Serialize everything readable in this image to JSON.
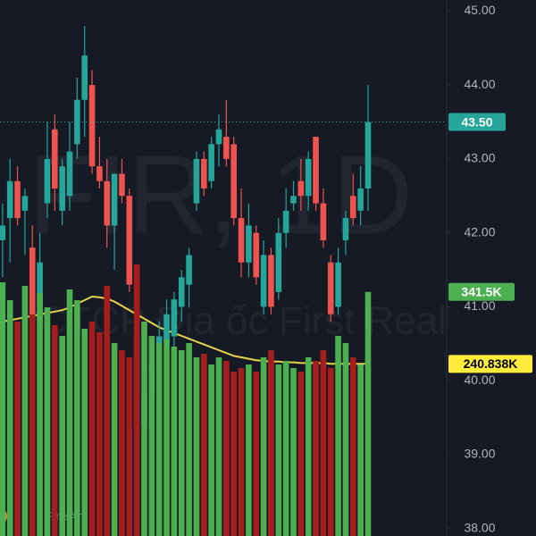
{
  "chart_data": {
    "type": "candlestick",
    "watermark": "FIR, 1D",
    "watermark_subtitle": "CTCP Địa ốc First Real",
    "brand": "FireAnt",
    "up_color": "#26a69a",
    "down_color": "#ef5350",
    "volume_up_color": "#4caf50",
    "volume_down_color": "#a51d1d",
    "ma_color": "#e6d34a",
    "ylim": [
      37.9,
      45.15
    ],
    "yticks": [
      {
        "value": 38,
        "label": "38.00"
      },
      {
        "value": 39,
        "label": "39.00"
      },
      {
        "value": 40,
        "label": "40.00"
      },
      {
        "value": 41,
        "label": "41.00"
      },
      {
        "value": 42,
        "label": "42.00"
      },
      {
        "value": 43,
        "label": "43.00"
      },
      {
        "value": 44,
        "label": "44.00"
      },
      {
        "value": 45,
        "label": "45.00"
      }
    ],
    "open": [
      41.9,
      42.2,
      42.7,
      42.3,
      41.8,
      40.8,
      42.4,
      43.4,
      42.3,
      42.5,
      43.2,
      43.8,
      44.0,
      42.9,
      42.7,
      42.1,
      42.8,
      42.5,
      40.6,
      39.4,
      39.8,
      40.2,
      40.5,
      40.6,
      41.0,
      41.3,
      42.4,
      43.0,
      42.7,
      43.2,
      43.3,
      43.2,
      42.2,
      41.6,
      42.0,
      41.0,
      41.7,
      41.2,
      42.0,
      42.4,
      42.7,
      42.5,
      43.3,
      42.4,
      41.6,
      41.0,
      41.9,
      42.5,
      42.3,
      42.6
    ],
    "high": [
      42.4,
      43.0,
      42.9,
      42.6,
      42.1,
      42.0,
      43.5,
      43.6,
      43.0,
      43.5,
      44.1,
      44.8,
      44.2,
      43.3,
      43.0,
      42.8,
      43.0,
      42.6,
      40.7,
      40.1,
      40.4,
      40.8,
      41.1,
      41.2,
      41.5,
      41.8,
      43.1,
      43.1,
      43.3,
      43.6,
      43.8,
      43.3,
      42.6,
      42.4,
      42.1,
      41.9,
      41.8,
      42.2,
      42.6,
      42.7,
      43.0,
      43.1,
      43.3,
      42.6,
      41.7,
      41.8,
      42.3,
      42.8,
      42.9,
      44.0
    ],
    "low": [
      41.4,
      41.6,
      42.1,
      41.7,
      40.4,
      40.6,
      42.2,
      42.3,
      42.1,
      42.3,
      43.0,
      43.3,
      42.8,
      42.6,
      41.8,
      41.5,
      42.4,
      41.2,
      39.2,
      39.1,
      39.6,
      40.0,
      40.3,
      40.4,
      40.8,
      41.0,
      42.3,
      42.5,
      42.6,
      42.9,
      42.9,
      42.1,
      41.4,
      41.4,
      41.3,
      40.9,
      40.9,
      41.1,
      41.8,
      42.3,
      42.3,
      42.3,
      42.3,
      41.8,
      40.8,
      40.9,
      41.7,
      42.1,
      42.1,
      42.3
    ],
    "close": [
      42.1,
      42.7,
      42.2,
      42.5,
      40.8,
      41.6,
      43.0,
      42.6,
      42.9,
      43.1,
      43.8,
      44.4,
      42.9,
      42.7,
      42.1,
      42.8,
      42.5,
      41.3,
      39.3,
      39.8,
      40.2,
      40.6,
      40.9,
      41.1,
      41.4,
      41.7,
      43.0,
      42.6,
      43.2,
      43.4,
      43.0,
      42.2,
      41.6,
      42.1,
      41.4,
      41.7,
      41.0,
      42.0,
      42.3,
      42.5,
      42.5,
      43.0,
      42.4,
      41.9,
      40.9,
      41.6,
      42.2,
      42.2,
      42.6,
      43.5
    ],
    "volume": [
      355000,
      330000,
      300000,
      350000,
      310000,
      340000,
      320000,
      295000,
      280000,
      345000,
      330000,
      290000,
      300000,
      285000,
      350000,
      270000,
      260000,
      250000,
      380000,
      300000,
      280000,
      270000,
      275000,
      265000,
      260000,
      270000,
      250000,
      255000,
      240000,
      250000,
      245000,
      230000,
      235000,
      240000,
      230000,
      250000,
      260000,
      240000,
      245000,
      235000,
      230000,
      250000,
      245000,
      260000,
      235000,
      280000,
      270000,
      250000,
      240000,
      341500
    ],
    "volume_ma": [
      300000,
      302000,
      304000,
      306000,
      308000,
      310000,
      312000,
      314000,
      316000,
      320000,
      325000,
      330000,
      335000,
      334000,
      332000,
      328000,
      322000,
      316000,
      310000,
      304000,
      298000,
      292000,
      288000,
      284000,
      280000,
      276000,
      272000,
      268000,
      264000,
      260000,
      256000,
      252000,
      250000,
      248000,
      246000,
      245000,
      244000,
      244000,
      243000,
      243000,
      242000,
      242000,
      242000,
      242000,
      241000,
      241000,
      241000,
      241000,
      241000,
      240838
    ],
    "volume_max": 750000,
    "current_price": {
      "value": 43.5,
      "label": "43.50"
    },
    "volume_marker": {
      "value": 341500,
      "label": "341.5K"
    },
    "ma_marker": {
      "value": 240838,
      "label": "240.838K"
    }
  }
}
